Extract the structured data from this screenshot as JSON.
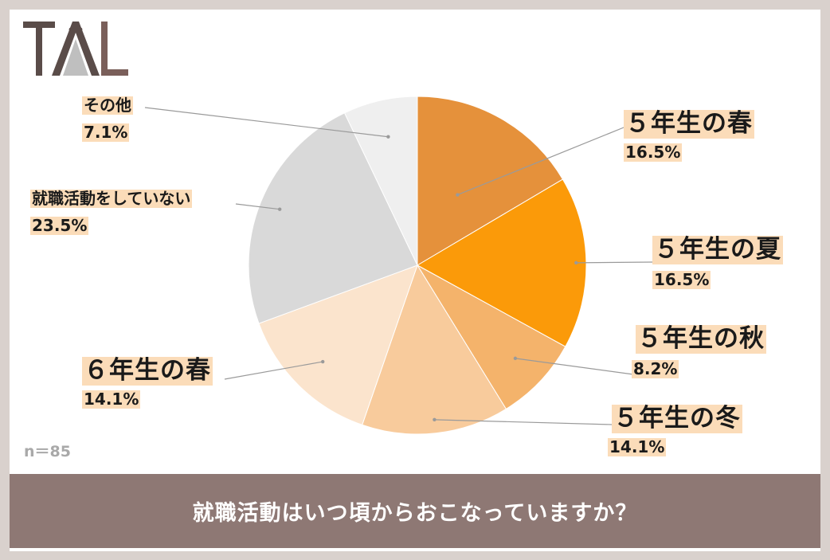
{
  "logo": {
    "text": "TAL",
    "color": "#5a4c49",
    "accent": "#7a5f5a"
  },
  "sample_size": "n＝85",
  "footer": {
    "title": "就職活動はいつ頃からおこなっていますか？",
    "background": "#8e7874"
  },
  "chart_data": {
    "type": "pie",
    "title": "",
    "start_angle_deg": 0,
    "direction": "clockwise",
    "slices": [
      {
        "label": "５年生の春",
        "value": 16.5,
        "value_label": "16.5%",
        "color": "#e5913b"
      },
      {
        "label": "５年生の夏",
        "value": 16.5,
        "value_label": "16.5%",
        "color": "#fb9a09"
      },
      {
        "label": "５年生の秋",
        "value": 8.2,
        "value_label": "8.2%",
        "color": "#f4b36b"
      },
      {
        "label": "５年生の冬",
        "value": 14.1,
        "value_label": "14.1%",
        "color": "#f8cb9c"
      },
      {
        "label": "６年生の春",
        "value": 14.1,
        "value_label": "14.1%",
        "color": "#fbe4cd"
      },
      {
        "label": "就職活動をしていない",
        "value": 23.5,
        "value_label": "23.5%",
        "color": "#d9d9d9"
      },
      {
        "label": "その他",
        "value": 7.1,
        "value_label": "7.1%",
        "color": "#efefef"
      }
    ]
  }
}
